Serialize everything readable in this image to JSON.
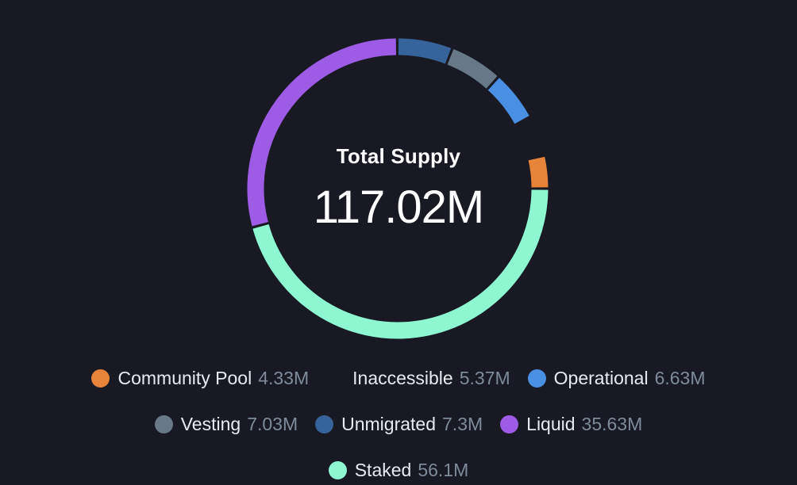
{
  "chart_data": {
    "type": "pie",
    "variant": "donut",
    "title": "Total Supply",
    "total_label": "117.02M",
    "slices": [
      {
        "name": "Community Pool",
        "value": 4.33,
        "display": "4.33M",
        "color": "#e8843a"
      },
      {
        "name": "Inaccessible",
        "value": 5.37,
        "display": "5.37M",
        "color": "#181922"
      },
      {
        "name": "Operational",
        "value": 6.63,
        "display": "6.63M",
        "color": "#4a90e2"
      },
      {
        "name": "Vesting",
        "value": 7.03,
        "display": "7.03M",
        "color": "#687887"
      },
      {
        "name": "Unmigrated",
        "value": 7.3,
        "display": "7.3M",
        "color": "#36649a"
      },
      {
        "name": "Liquid",
        "value": 35.63,
        "display": "35.63M",
        "color": "#9e5be6"
      },
      {
        "name": "Staked",
        "value": 56.1,
        "display": "56.1M",
        "color": "#8ef7d2"
      }
    ],
    "legend_rows": [
      [
        0,
        1,
        2
      ],
      [
        3,
        4,
        5
      ],
      [
        6
      ]
    ],
    "legend": "bottom-center"
  },
  "colors": {
    "background": "#181922",
    "legend_label": "#e9eaef",
    "legend_value": "#7d8b9a"
  }
}
